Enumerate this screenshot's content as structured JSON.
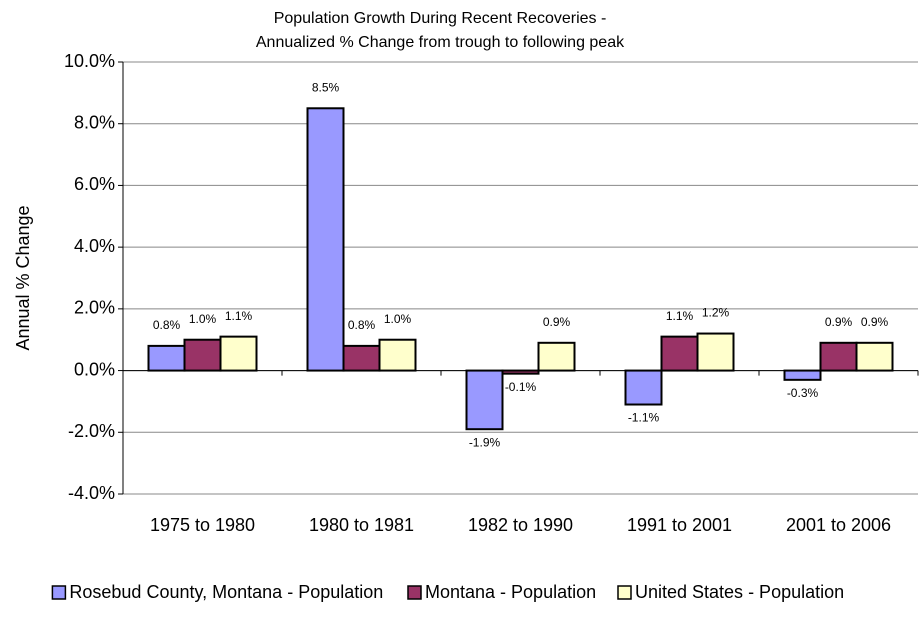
{
  "chart_data": {
    "type": "bar",
    "title": "Population Growth During Recent Recoveries -",
    "subtitle": "Annualized % Change from trough to following peak",
    "y_label": "Annual % Change",
    "categories": [
      "1975 to 1980",
      "1980 to 1981",
      "1982 to 1990",
      "1991 to 2001",
      "2001 to 2006"
    ],
    "series": [
      {
        "name": "Rosebud County, Montana - Population",
        "color": "#9999ff",
        "values": [
          0.8,
          8.5,
          -1.9,
          -1.1,
          -0.3
        ],
        "value_labels": [
          "0.8%",
          "8.5%",
          "-1.9%",
          "-1.1%",
          "-0.3%"
        ]
      },
      {
        "name": "Montana - Population",
        "color": "#993366",
        "values": [
          1.0,
          0.8,
          -0.1,
          1.1,
          0.9
        ],
        "value_labels": [
          "1.0%",
          "0.8%",
          "-0.1%",
          "1.1%",
          "0.9%"
        ]
      },
      {
        "name": "United States - Population",
        "color": "#ffffcc",
        "values": [
          1.1,
          1.0,
          0.9,
          1.2,
          0.9
        ],
        "value_labels": [
          "1.1%",
          "1.0%",
          "0.9%",
          "1.2%",
          "0.9%"
        ]
      }
    ],
    "ylim": [
      -4,
      10
    ],
    "yticks": [
      {
        "value": -4,
        "label": "-4.0%"
      },
      {
        "value": -2,
        "label": "-2.0%"
      },
      {
        "value": 0,
        "label": "0.0%"
      },
      {
        "value": 2,
        "label": "2.0%"
      },
      {
        "value": 4,
        "label": "4.0%"
      },
      {
        "value": 6,
        "label": "6.0%"
      },
      {
        "value": 8,
        "label": "8.0%"
      },
      {
        "value": 10,
        "label": "10.0%"
      }
    ],
    "grid": true,
    "legend": "bottom"
  }
}
